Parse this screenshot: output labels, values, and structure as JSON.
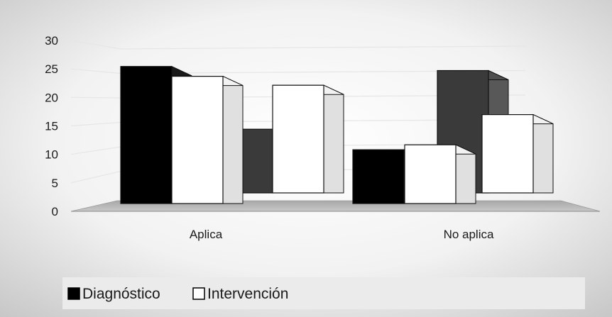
{
  "chart_data": {
    "type": "bar",
    "categories": [
      "Aplica",
      "No aplica"
    ],
    "series": [
      {
        "name": "Diagnóstico",
        "values": [
          28,
          11
        ],
        "color": "#000000",
        "row": "front"
      },
      {
        "name": "Intervención",
        "values": [
          26,
          12
        ],
        "color": "#ffffff",
        "row": "front"
      },
      {
        "name": "",
        "values": [
          13,
          25
        ],
        "color": "#3a3a3a",
        "row": "back"
      },
      {
        "name": "",
        "values": [
          22,
          16
        ],
        "color": "#ffffff",
        "row": "back"
      }
    ],
    "y_ticks": [
      "0",
      "5",
      "10",
      "15",
      "20",
      "25",
      "30"
    ],
    "ylim": [
      0,
      30
    ],
    "legend": {
      "placement": "bottom"
    },
    "title": "",
    "xlabel": "",
    "ylabel": ""
  }
}
